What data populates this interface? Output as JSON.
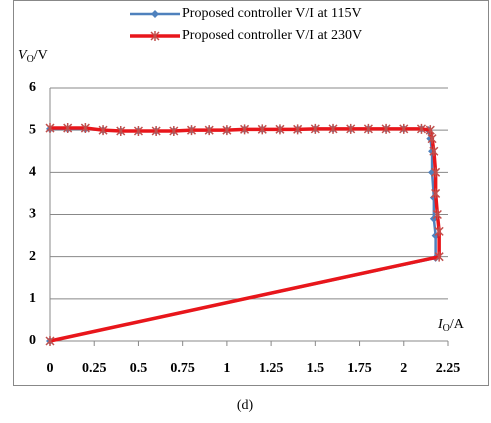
{
  "chart_data": {
    "type": "line",
    "caption": "(d)",
    "ylabel": [
      "V",
      "O",
      "/V"
    ],
    "xlabel": [
      "I",
      "O",
      "/A"
    ],
    "xlim": [
      0,
      2.25
    ],
    "ylim": [
      0,
      6
    ],
    "xticks": [
      0,
      0.25,
      0.5,
      0.75,
      1,
      1.25,
      1.5,
      1.75,
      2,
      2.25
    ],
    "yticks": [
      0,
      1,
      2,
      3,
      4,
      5,
      6
    ],
    "grid": true,
    "legend": "top",
    "series": [
      {
        "name": "Proposed controller V/I at 115V",
        "color": "#4f81bd",
        "marker": "diamond",
        "x": [
          0,
          0.1,
          0.2,
          0.3,
          0.4,
          0.5,
          0.6,
          0.7,
          0.8,
          0.9,
          1.0,
          1.1,
          1.2,
          1.3,
          1.4,
          1.5,
          1.6,
          1.7,
          1.8,
          1.9,
          2.0,
          2.1,
          2.14,
          2.15,
          2.16,
          2.16,
          2.17,
          2.17,
          2.18,
          2.18,
          0
        ],
        "values": [
          5.03,
          5.03,
          5.03,
          5.0,
          4.98,
          4.98,
          4.98,
          4.98,
          5.0,
          5.0,
          5.0,
          5.02,
          5.02,
          5.02,
          5.02,
          5.03,
          5.03,
          5.03,
          5.03,
          5.03,
          5.03,
          5.03,
          5.0,
          4.8,
          4.5,
          4.0,
          3.4,
          2.9,
          2.5,
          1.97,
          0
        ]
      },
      {
        "name": "Proposed controller V/I at 230V",
        "color": "#e8161b",
        "marker": "star",
        "x": [
          0,
          0.1,
          0.2,
          0.3,
          0.4,
          0.5,
          0.6,
          0.7,
          0.8,
          0.9,
          1.0,
          1.1,
          1.2,
          1.3,
          1.4,
          1.5,
          1.6,
          1.7,
          1.8,
          1.9,
          2.0,
          2.1,
          2.15,
          2.16,
          2.17,
          2.18,
          2.18,
          2.19,
          2.2,
          2.2,
          0
        ],
        "values": [
          5.05,
          5.05,
          5.05,
          5.0,
          4.98,
          4.98,
          4.98,
          4.98,
          5.0,
          5.0,
          5.0,
          5.02,
          5.02,
          5.02,
          5.02,
          5.03,
          5.03,
          5.03,
          5.03,
          5.03,
          5.03,
          5.03,
          5.0,
          4.8,
          4.5,
          4.0,
          3.5,
          3.0,
          2.6,
          2.0,
          0
        ]
      }
    ]
  }
}
